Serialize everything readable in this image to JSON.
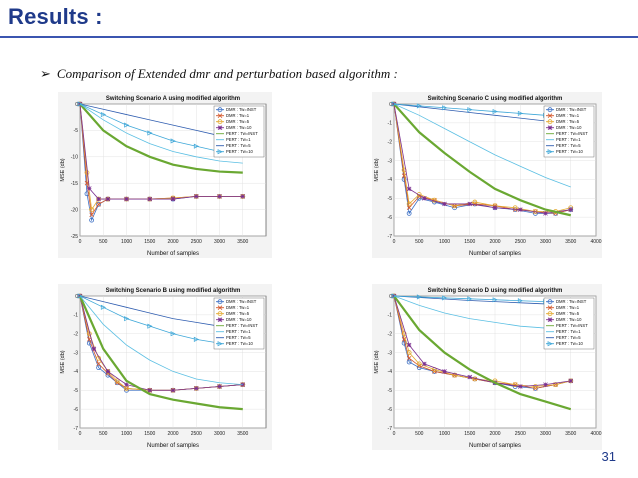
{
  "slide": {
    "title": "Results :",
    "bullet": "Comparison of Extended dmr and perturbation based algorithm :",
    "page_number": "31"
  },
  "chart_data": [
    {
      "type": "line",
      "id": "A",
      "title": "Switching Scenario A using modified algorithm",
      "xlabel": "Number of samples",
      "ylabel": "MSE (db)",
      "xlim": [
        0,
        4000
      ],
      "ylim": [
        -25,
        0
      ],
      "xticks": [
        0,
        500,
        1000,
        1500,
        2000,
        2500,
        3000,
        3500
      ],
      "yticks": [
        0,
        -5,
        -10,
        -15,
        -20,
        -25
      ],
      "grid": true,
      "legend_position": "top-right",
      "series": [
        {
          "name": "DMR : Tw=INST",
          "color": "#3b6fc4",
          "marker": "o",
          "x": [
            0,
            150,
            250,
            400,
            600,
            1000,
            1500,
            2000,
            2500,
            3000,
            3500
          ],
          "y": [
            0,
            -17,
            -22,
            -19,
            -18,
            -18,
            -18,
            -18,
            -17.5,
            -17.5,
            -17.5
          ]
        },
        {
          "name": "DMR : Tw=1",
          "color": "#d4572b",
          "marker": "x",
          "x": [
            0,
            150,
            250,
            400,
            600,
            1000,
            1500,
            2000,
            2500,
            3000,
            3500
          ],
          "y": [
            0,
            -15,
            -21,
            -19,
            -18,
            -18,
            -18,
            -17.8,
            -17.5,
            -17.5,
            -17.5
          ]
        },
        {
          "name": "DMR : Tw=5",
          "color": "#e3a92f",
          "marker": "o",
          "x": [
            0,
            150,
            250,
            400,
            600,
            1000,
            1500,
            2000,
            2500,
            3000,
            3500
          ],
          "y": [
            0,
            -13,
            -20,
            -18,
            -18,
            -18,
            -18,
            -17.8,
            -17.5,
            -17.5,
            -17.5
          ]
        },
        {
          "name": "DMR : Tw=10",
          "color": "#7a2f8f",
          "marker": "*",
          "x": [
            0,
            200,
            400,
            600,
            1000,
            1500,
            2000,
            2500,
            3000,
            3500
          ],
          "y": [
            0,
            -16,
            -18,
            -18,
            -18,
            -18,
            -18,
            -17.5,
            -17.5,
            -17.5
          ]
        },
        {
          "name": "PERT : Tw=INST",
          "color": "#6aa832",
          "marker": "",
          "x": [
            0,
            500,
            1000,
            1500,
            2000,
            2500,
            3000,
            3500
          ],
          "y": [
            0,
            -5,
            -8,
            -10,
            -11.5,
            -12.3,
            -12.8,
            -13
          ]
        },
        {
          "name": "PERT : Tw=1",
          "color": "#5bbfe3",
          "marker": "",
          "x": [
            0,
            500,
            1000,
            1500,
            2000,
            2500,
            3000,
            3500
          ],
          "y": [
            0,
            -3,
            -5.5,
            -7.5,
            -9,
            -10,
            -10.8,
            -11.2
          ]
        },
        {
          "name": "PERT : Tw=5",
          "color": "#2f5db0",
          "marker": "",
          "x": [
            0,
            500,
            1000,
            1500,
            2000,
            2500,
            3000,
            3500
          ],
          "y": [
            0,
            -1,
            -2,
            -3,
            -4,
            -5,
            -6,
            -6.5
          ]
        },
        {
          "name": "PERT : Tw=10",
          "color": "#3ea7d8",
          "marker": ">",
          "x": [
            0,
            500,
            1000,
            1500,
            2000,
            2500,
            3000,
            3500
          ],
          "y": [
            0,
            -2,
            -4,
            -5.5,
            -7,
            -8,
            -9,
            -9.5
          ]
        }
      ]
    },
    {
      "type": "line",
      "id": "C",
      "title": "Switching Scenario C using modified algorithm",
      "xlabel": "Number of samples",
      "ylabel": "MSE (db)",
      "xlim": [
        0,
        4000
      ],
      "ylim": [
        -7,
        0
      ],
      "xticks": [
        0,
        500,
        1000,
        1500,
        2000,
        2500,
        3000,
        3500,
        4000
      ],
      "yticks": [
        0,
        -1,
        -2,
        -3,
        -4,
        -5,
        -6,
        -7
      ],
      "grid": true,
      "legend_position": "top-right",
      "series": [
        {
          "name": "DMR : Tw=INST",
          "color": "#3b6fc4",
          "marker": "o",
          "x": [
            0,
            200,
            300,
            500,
            800,
            1200,
            1600,
            2000,
            2400,
            2800,
            3200,
            3500
          ],
          "y": [
            0,
            -4,
            -5.8,
            -5,
            -5.2,
            -5.5,
            -5.3,
            -5.5,
            -5.6,
            -5.8,
            -5.8,
            -5.6
          ]
        },
        {
          "name": "DMR : Tw=1",
          "color": "#d4572b",
          "marker": "x",
          "x": [
            0,
            200,
            300,
            500,
            800,
            1200,
            1600,
            2000,
            2400,
            2800,
            3200,
            3500
          ],
          "y": [
            0,
            -3.8,
            -5.5,
            -4.9,
            -5.1,
            -5.4,
            -5.3,
            -5.4,
            -5.6,
            -5.7,
            -5.8,
            -5.6
          ]
        },
        {
          "name": "DMR : Tw=5",
          "color": "#e3a92f",
          "marker": "o",
          "x": [
            0,
            200,
            300,
            500,
            800,
            1200,
            1600,
            2000,
            2400,
            2800,
            3200,
            3500
          ],
          "y": [
            0,
            -3.5,
            -5.3,
            -4.8,
            -5.1,
            -5.4,
            -5.2,
            -5.4,
            -5.5,
            -5.7,
            -5.7,
            -5.5
          ]
        },
        {
          "name": "DMR : Tw=10",
          "color": "#7a2f8f",
          "marker": "*",
          "x": [
            0,
            300,
            600,
            1000,
            1500,
            2000,
            2500,
            3000,
            3500
          ],
          "y": [
            0,
            -4.5,
            -5,
            -5.3,
            -5.3,
            -5.5,
            -5.6,
            -5.8,
            -5.6
          ]
        },
        {
          "name": "PERT : Tw=INST",
          "color": "#6aa832",
          "marker": "",
          "x": [
            0,
            500,
            1000,
            1500,
            2000,
            2500,
            3000,
            3500
          ],
          "y": [
            0,
            -1.5,
            -2.6,
            -3.6,
            -4.5,
            -5.1,
            -5.6,
            -5.9
          ]
        },
        {
          "name": "PERT : Tw=1",
          "color": "#5bbfe3",
          "marker": "",
          "x": [
            0,
            500,
            1000,
            1500,
            2000,
            2500,
            3000,
            3500
          ],
          "y": [
            0,
            -0.6,
            -1.3,
            -2,
            -2.7,
            -3.3,
            -3.9,
            -4.4
          ]
        },
        {
          "name": "PERT : Tw=5",
          "color": "#2f5db0",
          "marker": "",
          "x": [
            0,
            500,
            1000,
            1500,
            2000,
            2500,
            3000,
            3500
          ],
          "y": [
            0,
            -0.15,
            -0.3,
            -0.45,
            -0.6,
            -0.75,
            -0.9,
            -1.0
          ]
        },
        {
          "name": "PERT : Tw=10",
          "color": "#3ea7d8",
          "marker": ">",
          "x": [
            0,
            500,
            1000,
            1500,
            2000,
            2500,
            3000,
            3500
          ],
          "y": [
            0,
            -0.1,
            -0.2,
            -0.3,
            -0.4,
            -0.5,
            -0.6,
            -0.7
          ]
        }
      ]
    },
    {
      "type": "line",
      "id": "B",
      "title": "Switching Scenario B using modified algorithm",
      "xlabel": "Number of samples",
      "ylabel": "MSE (db)",
      "xlim": [
        0,
        4000
      ],
      "ylim": [
        -7,
        0
      ],
      "xticks": [
        0,
        500,
        1000,
        1500,
        2000,
        2500,
        3000,
        3500
      ],
      "yticks": [
        0,
        -1,
        -2,
        -3,
        -4,
        -5,
        -6,
        -7
      ],
      "grid": true,
      "legend_position": "top-right",
      "series": [
        {
          "name": "DMR : Tw=INST",
          "color": "#3b6fc4",
          "marker": "o",
          "x": [
            0,
            200,
            400,
            600,
            800,
            1000,
            1500,
            2000,
            2500,
            3000,
            3500
          ],
          "y": [
            0,
            -2.5,
            -3.8,
            -4.2,
            -4.6,
            -5.0,
            -5.0,
            -5.0,
            -4.9,
            -4.8,
            -4.7
          ]
        },
        {
          "name": "DMR : Tw=1",
          "color": "#d4572b",
          "marker": "x",
          "x": [
            0,
            200,
            400,
            600,
            800,
            1000,
            1500,
            2000,
            2500,
            3000,
            3500
          ],
          "y": [
            0,
            -2.3,
            -3.6,
            -4.1,
            -4.6,
            -4.9,
            -5.0,
            -5.0,
            -4.9,
            -4.8,
            -4.7
          ]
        },
        {
          "name": "DMR : Tw=5",
          "color": "#e3a92f",
          "marker": "o",
          "x": [
            0,
            200,
            400,
            600,
            800,
            1000,
            1500,
            2000,
            2500,
            3000,
            3500
          ],
          "y": [
            0,
            -2.0,
            -3.3,
            -4.0,
            -4.5,
            -4.9,
            -5.0,
            -5.0,
            -4.9,
            -4.8,
            -4.7
          ]
        },
        {
          "name": "DMR : Tw=10",
          "color": "#7a2f8f",
          "marker": "*",
          "x": [
            0,
            300,
            600,
            1000,
            1500,
            2000,
            2500,
            3000,
            3500
          ],
          "y": [
            0,
            -2.8,
            -4.0,
            -4.7,
            -5.0,
            -5.0,
            -4.9,
            -4.8,
            -4.7
          ]
        },
        {
          "name": "PERT : Tw=INST",
          "color": "#6aa832",
          "marker": "",
          "x": [
            0,
            500,
            1000,
            1500,
            2000,
            2500,
            3000,
            3500
          ],
          "y": [
            0,
            -2.8,
            -4.5,
            -5.2,
            -5.5,
            -5.7,
            -5.9,
            -6.0
          ]
        },
        {
          "name": "PERT : Tw=1",
          "color": "#5bbfe3",
          "marker": "",
          "x": [
            0,
            500,
            1000,
            1500,
            2000,
            2500,
            3000,
            3500
          ],
          "y": [
            0,
            -1.5,
            -2.6,
            -3.4,
            -4.0,
            -4.4,
            -4.6,
            -4.7
          ]
        },
        {
          "name": "PERT : Tw=5",
          "color": "#2f5db0",
          "marker": "",
          "x": [
            0,
            500,
            1000,
            1500,
            2000,
            2500,
            3000,
            3500
          ],
          "y": [
            0,
            -0.3,
            -0.6,
            -0.9,
            -1.2,
            -1.4,
            -1.6,
            -1.8
          ]
        },
        {
          "name": "PERT : Tw=10",
          "color": "#3ea7d8",
          "marker": ">",
          "x": [
            0,
            500,
            1000,
            1500,
            2000,
            2500,
            3000,
            3500
          ],
          "y": [
            0,
            -0.6,
            -1.2,
            -1.6,
            -2.0,
            -2.3,
            -2.5,
            -2.7
          ]
        }
      ]
    },
    {
      "type": "line",
      "id": "D",
      "title": "Switching Scenario D using modified algorithm",
      "xlabel": "Number of samples",
      "ylabel": "MSE (db)",
      "xlim": [
        0,
        4000
      ],
      "ylim": [
        -7,
        0
      ],
      "xticks": [
        0,
        500,
        1000,
        1500,
        2000,
        2500,
        3000,
        3500,
        4000
      ],
      "yticks": [
        0,
        -1,
        -2,
        -3,
        -4,
        -5,
        -6,
        -7
      ],
      "grid": true,
      "legend_position": "top-right",
      "series": [
        {
          "name": "DMR : Tw=INST",
          "color": "#3b6fc4",
          "marker": "o",
          "x": [
            0,
            200,
            300,
            500,
            800,
            1200,
            1600,
            2000,
            2400,
            2800,
            3200,
            3500
          ],
          "y": [
            0,
            -2.5,
            -3.5,
            -3.8,
            -4.0,
            -4.2,
            -4.4,
            -4.6,
            -4.8,
            -4.9,
            -4.7,
            -4.5
          ]
        },
        {
          "name": "DMR : Tw=1",
          "color": "#d4572b",
          "marker": "x",
          "x": [
            0,
            200,
            300,
            500,
            800,
            1200,
            1600,
            2000,
            2400,
            2800,
            3200,
            3500
          ],
          "y": [
            0,
            -2.3,
            -3.3,
            -3.7,
            -4.0,
            -4.2,
            -4.4,
            -4.6,
            -4.7,
            -4.9,
            -4.7,
            -4.5
          ]
        },
        {
          "name": "DMR : Tw=5",
          "color": "#e3a92f",
          "marker": "o",
          "x": [
            0,
            200,
            300,
            500,
            800,
            1200,
            1600,
            2000,
            2400,
            2800,
            3200,
            3500
          ],
          "y": [
            0,
            -2.0,
            -3.0,
            -3.6,
            -3.9,
            -4.2,
            -4.4,
            -4.5,
            -4.7,
            -4.8,
            -4.7,
            -4.5
          ]
        },
        {
          "name": "DMR : Tw=10",
          "color": "#7a2f8f",
          "marker": "*",
          "x": [
            0,
            300,
            600,
            1000,
            1500,
            2000,
            2500,
            3000,
            3500
          ],
          "y": [
            0,
            -2.6,
            -3.6,
            -4.0,
            -4.3,
            -4.6,
            -4.8,
            -4.7,
            -4.5
          ]
        },
        {
          "name": "PERT : Tw=INST",
          "color": "#6aa832",
          "marker": "",
          "x": [
            0,
            500,
            1000,
            1500,
            2000,
            2500,
            3000,
            3500
          ],
          "y": [
            0,
            -1.8,
            -3.0,
            -3.9,
            -4.6,
            -5.2,
            -5.6,
            -6.0
          ]
        },
        {
          "name": "PERT : Tw=1",
          "color": "#5bbfe3",
          "marker": "",
          "x": [
            0,
            500,
            1000,
            1500,
            2000,
            2500,
            3000,
            3500
          ],
          "y": [
            0,
            -0.5,
            -0.9,
            -1.2,
            -1.4,
            -1.6,
            -1.7,
            -1.8
          ]
        },
        {
          "name": "PERT : Tw=5",
          "color": "#2f5db0",
          "marker": "",
          "x": [
            0,
            500,
            1000,
            1500,
            2000,
            2500,
            3000,
            3500
          ],
          "y": [
            0,
            -0.08,
            -0.16,
            -0.24,
            -0.3,
            -0.36,
            -0.42,
            -0.48
          ]
        },
        {
          "name": "PERT : Tw=10",
          "color": "#3ea7d8",
          "marker": ">",
          "x": [
            0,
            500,
            1000,
            1500,
            2000,
            2500,
            3000,
            3500
          ],
          "y": [
            0,
            -0.05,
            -0.1,
            -0.15,
            -0.2,
            -0.25,
            -0.3,
            -0.35
          ]
        }
      ]
    }
  ]
}
